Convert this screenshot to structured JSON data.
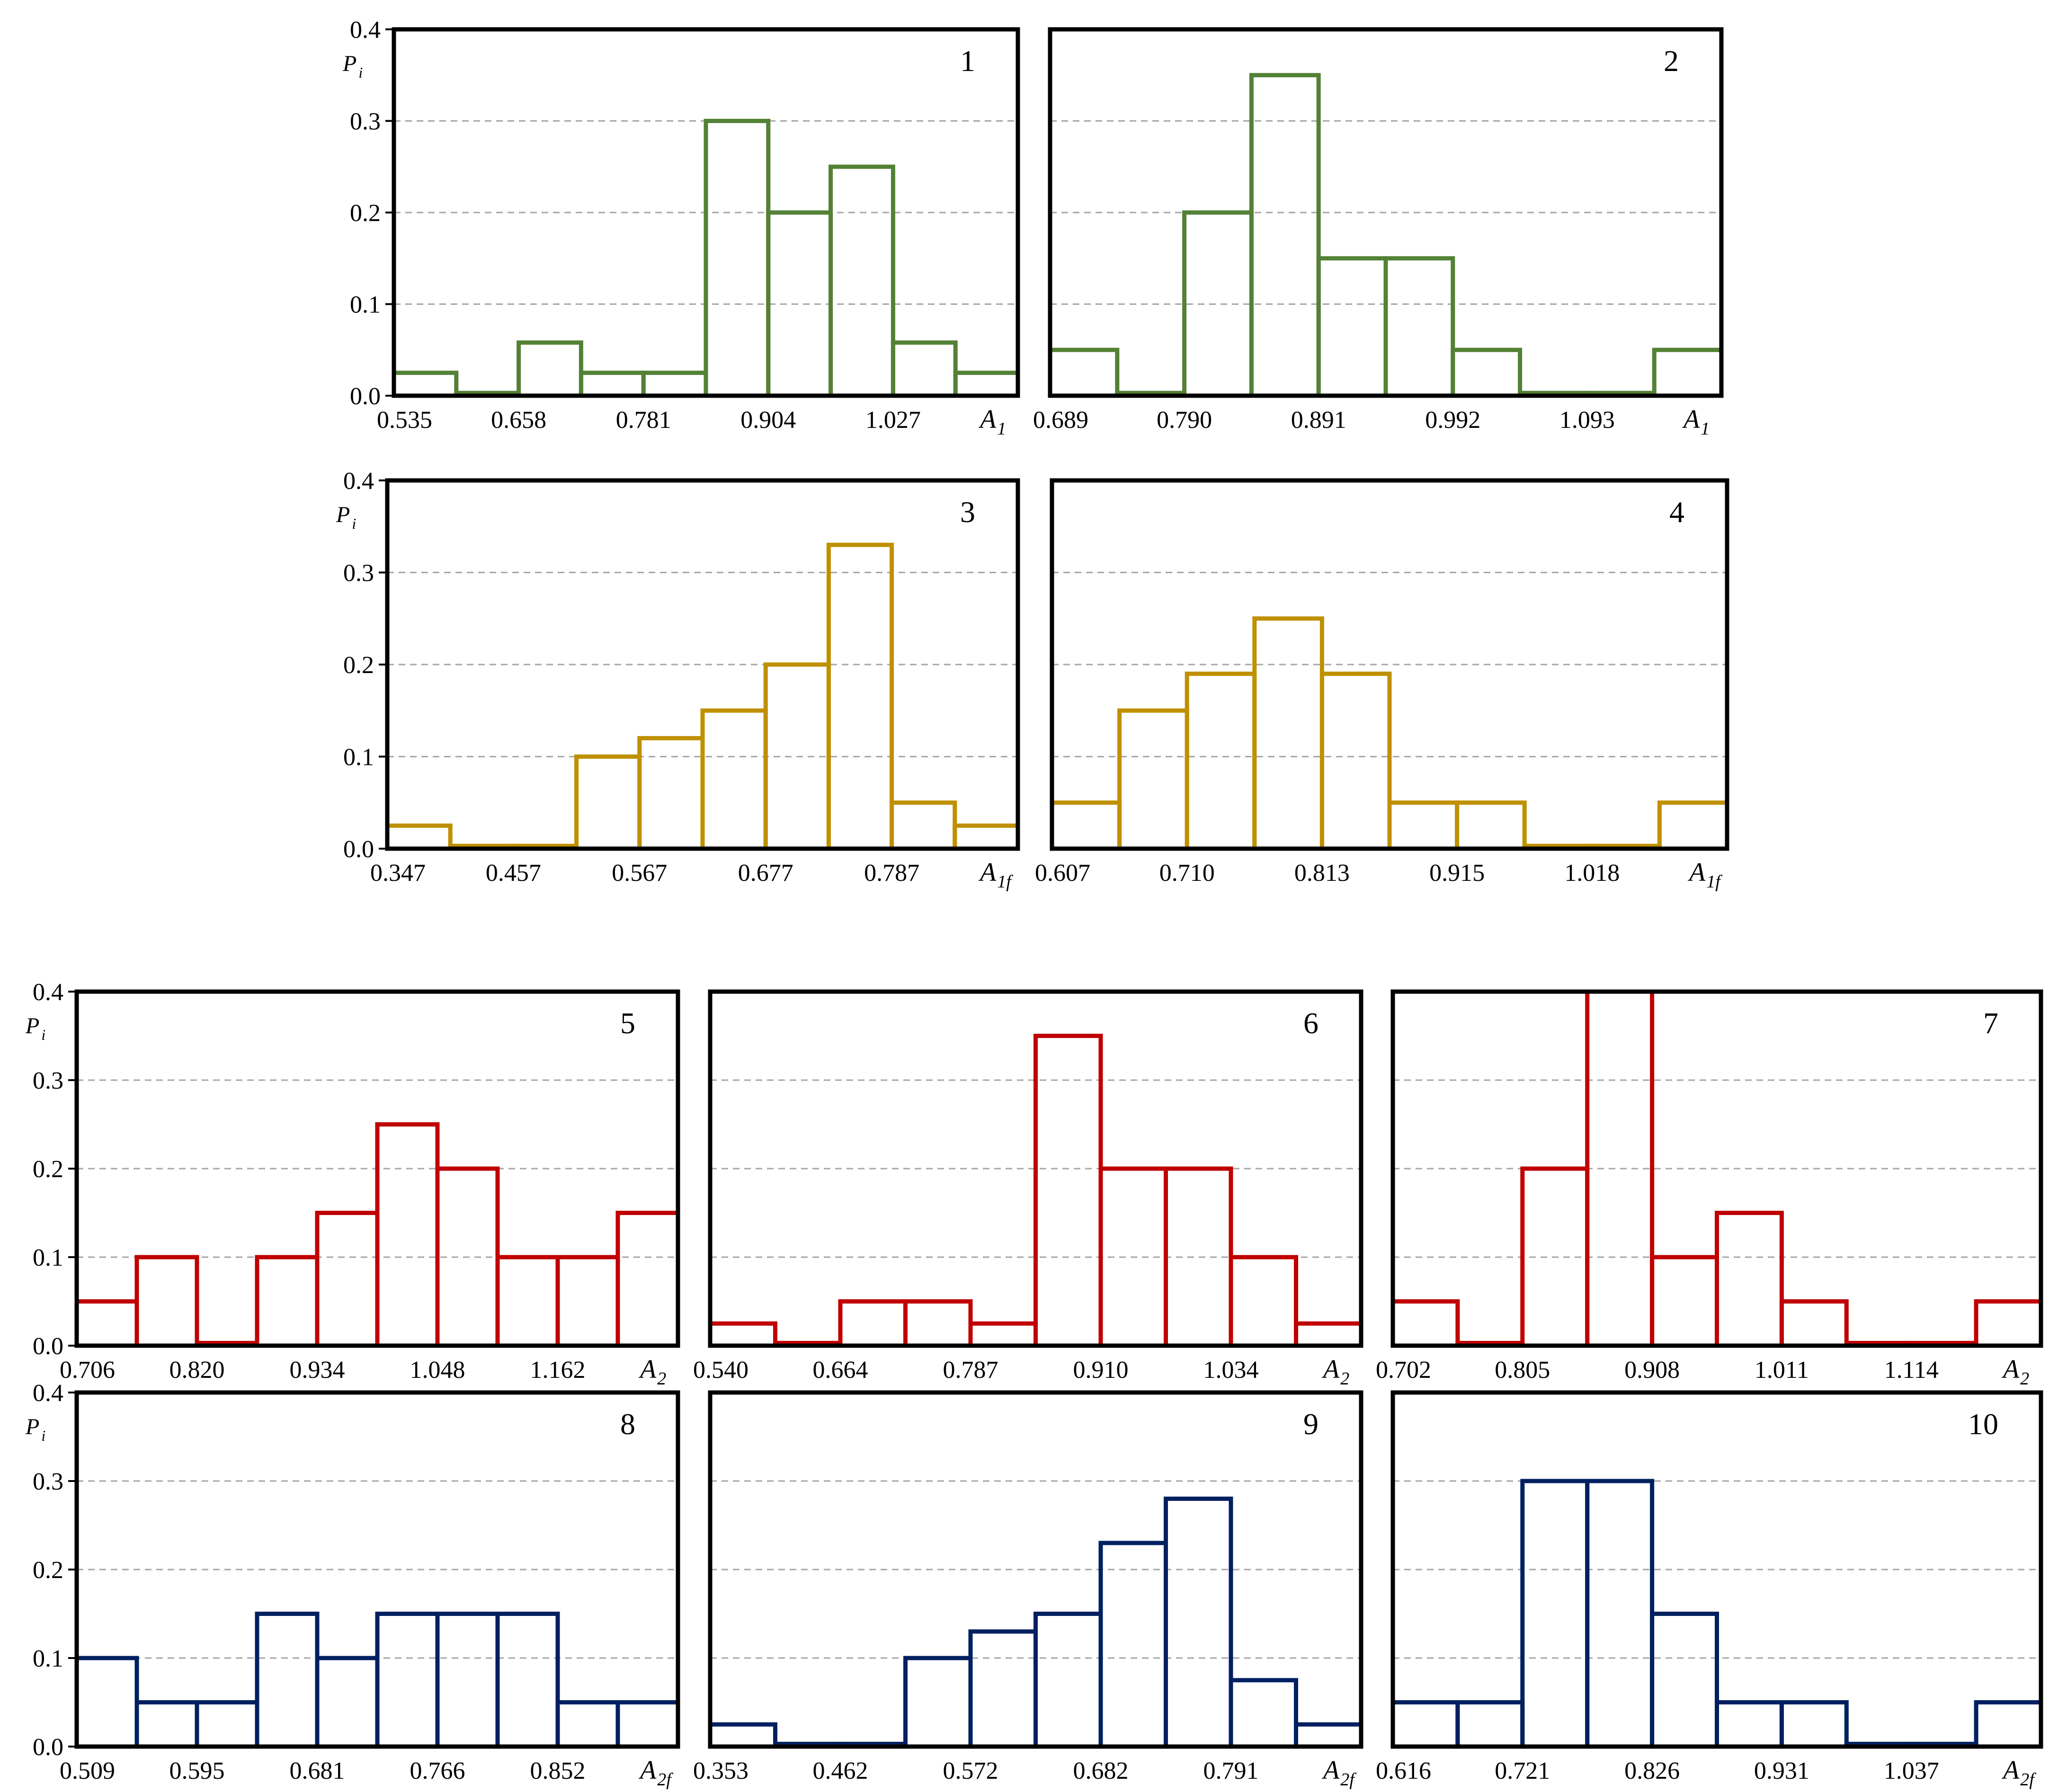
{
  "colors": {
    "green": "#538135",
    "gold": "#BF9000",
    "red": "#C00000",
    "navy": "#002060",
    "grid": "#A6A6A6",
    "frame": "#000000"
  },
  "ylabel": {
    "main": "P",
    "sub": "i"
  },
  "chart_data": [
    {
      "type": "bar",
      "panel": "1",
      "number_label": "1",
      "xlabel": {
        "main": "A",
        "sub": "1"
      },
      "ylim": [
        0,
        0.4
      ],
      "show_yticks": true,
      "show_ylabel": true,
      "yticks": [
        "0.0",
        "0.1",
        "0.2",
        "0.3",
        "0.4"
      ],
      "xticks": [
        "0.535",
        "0.658",
        "0.781",
        "0.904",
        "1.027"
      ],
      "values": [
        0.025,
        0.003,
        0.058,
        0.025,
        0.025,
        0.3,
        0.2,
        0.25,
        0.058,
        0.025
      ],
      "color_key": "green"
    },
    {
      "type": "bar",
      "panel": "2",
      "number_label": "2",
      "xlabel": {
        "main": "A",
        "sub": "1"
      },
      "ylim": [
        0,
        0.4
      ],
      "show_yticks": false,
      "show_ylabel": false,
      "yticks": [],
      "xticks": [
        "0.689",
        "0.790",
        "0.891",
        "0.992",
        "1.093"
      ],
      "values": [
        0.05,
        0.003,
        0.2,
        0.35,
        0.15,
        0.15,
        0.05,
        0.003,
        0.003,
        0.05
      ],
      "color_key": "green"
    },
    {
      "type": "bar",
      "panel": "3",
      "number_label": "3",
      "xlabel": {
        "main": "A",
        "sub": "1f"
      },
      "ylim": [
        0,
        0.4
      ],
      "show_yticks": true,
      "show_ylabel": true,
      "yticks": [
        "0.0",
        "0.1",
        "0.2",
        "0.3",
        "0.4"
      ],
      "xticks": [
        "0.347",
        "0.457",
        "0.567",
        "0.677",
        "0.787"
      ],
      "values": [
        0.025,
        0.003,
        0.003,
        0.1,
        0.12,
        0.15,
        0.2,
        0.33,
        0.05,
        0.025
      ],
      "color_key": "gold"
    },
    {
      "type": "bar",
      "panel": "4",
      "number_label": "4",
      "xlabel": {
        "main": "A",
        "sub": "1f"
      },
      "ylim": [
        0,
        0.4
      ],
      "show_yticks": false,
      "show_ylabel": false,
      "yticks": [],
      "xticks": [
        "0.607",
        "0.710",
        "0.813",
        "0.915",
        "1.018"
      ],
      "values": [
        0.05,
        0.15,
        0.19,
        0.25,
        0.19,
        0.05,
        0.05,
        0.003,
        0.003,
        0.05
      ],
      "color_key": "gold"
    },
    {
      "type": "bar",
      "panel": "5",
      "number_label": "5",
      "xlabel": {
        "main": "A",
        "sub": "2"
      },
      "ylim": [
        0,
        0.4
      ],
      "show_yticks": true,
      "show_ylabel": true,
      "yticks": [
        "0.0",
        "0.1",
        "0.2",
        "0.3",
        "0.4"
      ],
      "xticks": [
        "0.706",
        "0.820",
        "0.934",
        "1.048",
        "1.162"
      ],
      "values": [
        0.05,
        0.1,
        0.003,
        0.1,
        0.15,
        0.25,
        0.2,
        0.1,
        0.1,
        0.15
      ],
      "color_key": "red"
    },
    {
      "type": "bar",
      "panel": "6",
      "number_label": "6",
      "xlabel": {
        "main": "A",
        "sub": "2"
      },
      "ylim": [
        0,
        0.4
      ],
      "show_yticks": false,
      "show_ylabel": false,
      "yticks": [],
      "xticks": [
        "0.540",
        "0.664",
        "0.787",
        "0.910",
        "1.034"
      ],
      "values": [
        0.025,
        0.003,
        0.05,
        0.05,
        0.025,
        0.35,
        0.2,
        0.2,
        0.1,
        0.025
      ],
      "color_key": "red"
    },
    {
      "type": "bar",
      "panel": "7",
      "number_label": "7",
      "xlabel": {
        "main": "A",
        "sub": "2"
      },
      "ylim": [
        0,
        0.4
      ],
      "show_yticks": false,
      "show_ylabel": false,
      "yticks": [],
      "xticks": [
        "0.702",
        "0.805",
        "0.908",
        "1.011",
        "1.114"
      ],
      "values": [
        0.05,
        0.003,
        0.2,
        0.4,
        0.1,
        0.15,
        0.05,
        0.003,
        0.003,
        0.05
      ],
      "color_key": "red"
    },
    {
      "type": "bar",
      "panel": "8",
      "number_label": "8",
      "xlabel": {
        "main": "A",
        "sub": "2f"
      },
      "ylim": [
        0,
        0.4
      ],
      "show_yticks": true,
      "show_ylabel": true,
      "yticks": [
        "0.0",
        "0.1",
        "0.2",
        "0.3",
        "0.4"
      ],
      "xticks": [
        "0.509",
        "0.595",
        "0.681",
        "0.766",
        "0.852"
      ],
      "values": [
        0.1,
        0.05,
        0.05,
        0.15,
        0.1,
        0.15,
        0.15,
        0.15,
        0.05,
        0.05
      ],
      "color_key": "navy"
    },
    {
      "type": "bar",
      "panel": "9",
      "number_label": "9",
      "xlabel": {
        "main": "A",
        "sub": "2f"
      },
      "ylim": [
        0,
        0.4
      ],
      "show_yticks": false,
      "show_ylabel": false,
      "yticks": [],
      "xticks": [
        "0.353",
        "0.462",
        "0.572",
        "0.682",
        "0.791"
      ],
      "values": [
        0.025,
        0.003,
        0.003,
        0.1,
        0.13,
        0.15,
        0.23,
        0.28,
        0.075,
        0.025
      ],
      "color_key": "navy"
    },
    {
      "type": "bar",
      "panel": "10",
      "number_label": "10",
      "xlabel": {
        "main": "A",
        "sub": "2f"
      },
      "ylim": [
        0,
        0.4
      ],
      "show_yticks": false,
      "show_ylabel": false,
      "yticks": [],
      "xticks": [
        "0.616",
        "0.721",
        "0.826",
        "0.931",
        "1.037"
      ],
      "values": [
        0.05,
        0.05,
        0.3,
        0.3,
        0.15,
        0.05,
        0.05,
        0.003,
        0.003,
        0.05
      ],
      "color_key": "navy"
    }
  ]
}
